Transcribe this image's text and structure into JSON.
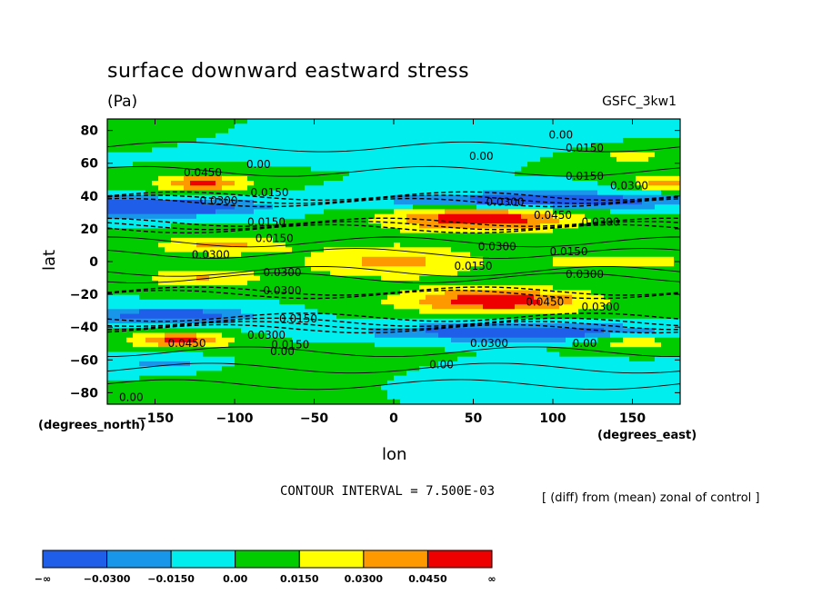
{
  "header": {
    "title": "surface downward eastward stress",
    "units": "(Pa)",
    "model": "GSFC_3kw1"
  },
  "footer": {
    "contour_interval": "CONTOUR INTERVAL = 7.500E-03",
    "note": "[ (diff) from (mean) zonal of control ]"
  },
  "axes": {
    "xlabel": "lon",
    "ylabel": "lat",
    "x_unit_caption": "(degrees_east)",
    "y_unit_caption": "(degrees_north)"
  },
  "chart_data": {
    "type": "heatmap",
    "title": "surface downward eastward stress",
    "xlabel": "lon",
    "ylabel": "lat",
    "xlim": [
      -180,
      180
    ],
    "ylim": [
      -87,
      87
    ],
    "x_ticks": [
      -150,
      -100,
      -50,
      0,
      50,
      100,
      150
    ],
    "x_tick_labels": [
      "−150",
      "−100",
      "−50",
      "0",
      "50",
      "100",
      "150"
    ],
    "y_ticks": [
      80,
      60,
      40,
      20,
      0,
      -20,
      -40,
      -60,
      -80
    ],
    "y_tick_labels": [
      "80",
      "60",
      "40",
      "20",
      "0",
      "−20",
      "−40",
      "−60",
      "−80"
    ],
    "contour_interval": 0.0075,
    "color_levels": [
      -0.03,
      -0.015,
      0.0,
      0.015,
      0.03,
      0.045
    ],
    "colorbar_labels": [
      "−∞",
      "−0.0300",
      "−0.0150",
      "0.00",
      "0.0150",
      "0.0300",
      "0.0450",
      "∞"
    ],
    "colors": [
      "#1f5ee8",
      "#1896ea",
      "#00eeee",
      "#00cc00",
      "#ffff00",
      "#ff9900",
      "#ee0000"
    ],
    "contour_labels": [
      {
        "lon": 105,
        "lat": 75,
        "text": "0.00"
      },
      {
        "lon": 120,
        "lat": 67,
        "text": "0.0150"
      },
      {
        "lon": 55,
        "lat": 62,
        "text": "0.00"
      },
      {
        "lon": -85,
        "lat": 57,
        "text": "0.00"
      },
      {
        "lon": -120,
        "lat": 52,
        "text": "0.0450"
      },
      {
        "lon": 120,
        "lat": 50,
        "text": "0.0150"
      },
      {
        "lon": 148,
        "lat": 44,
        "text": "0.0300"
      },
      {
        "lon": -78,
        "lat": 40,
        "text": "0.0150"
      },
      {
        "lon": -110,
        "lat": 35,
        "text": "0.0300"
      },
      {
        "lon": 70,
        "lat": 34,
        "text": "0.0300"
      },
      {
        "lon": 100,
        "lat": 26,
        "text": "0.0450"
      },
      {
        "lon": 130,
        "lat": 22,
        "text": "0.0300"
      },
      {
        "lon": -80,
        "lat": 22,
        "text": "0.0150"
      },
      {
        "lon": -75,
        "lat": 12,
        "text": "0.0150"
      },
      {
        "lon": -115,
        "lat": 2,
        "text": "0.0300"
      },
      {
        "lon": 65,
        "lat": 7,
        "text": "0.0300"
      },
      {
        "lon": 110,
        "lat": 4,
        "text": "0.0150"
      },
      {
        "lon": 50,
        "lat": -5,
        "text": "0.0150"
      },
      {
        "lon": 120,
        "lat": -10,
        "text": "0.0300"
      },
      {
        "lon": -70,
        "lat": -9,
        "text": "0.0300"
      },
      {
        "lon": -70,
        "lat": -20,
        "text": "0.0300"
      },
      {
        "lon": 95,
        "lat": -27,
        "text": "0.0450"
      },
      {
        "lon": 130,
        "lat": -30,
        "text": "0.0300"
      },
      {
        "lon": -60,
        "lat": -37,
        "text": "0.0150"
      },
      {
        "lon": -80,
        "lat": -47,
        "text": "0.0300"
      },
      {
        "lon": -130,
        "lat": -52,
        "text": "0.0450"
      },
      {
        "lon": -65,
        "lat": -53,
        "text": "0.0150"
      },
      {
        "lon": 60,
        "lat": -52,
        "text": "0.0300"
      },
      {
        "lon": 120,
        "lat": -52,
        "text": "0.00"
      },
      {
        "lon": -70,
        "lat": -57,
        "text": "0.00"
      },
      {
        "lon": 30,
        "lat": -65,
        "text": "0.00"
      },
      {
        "lon": -165,
        "lat": -85,
        "text": "0.00"
      }
    ]
  }
}
